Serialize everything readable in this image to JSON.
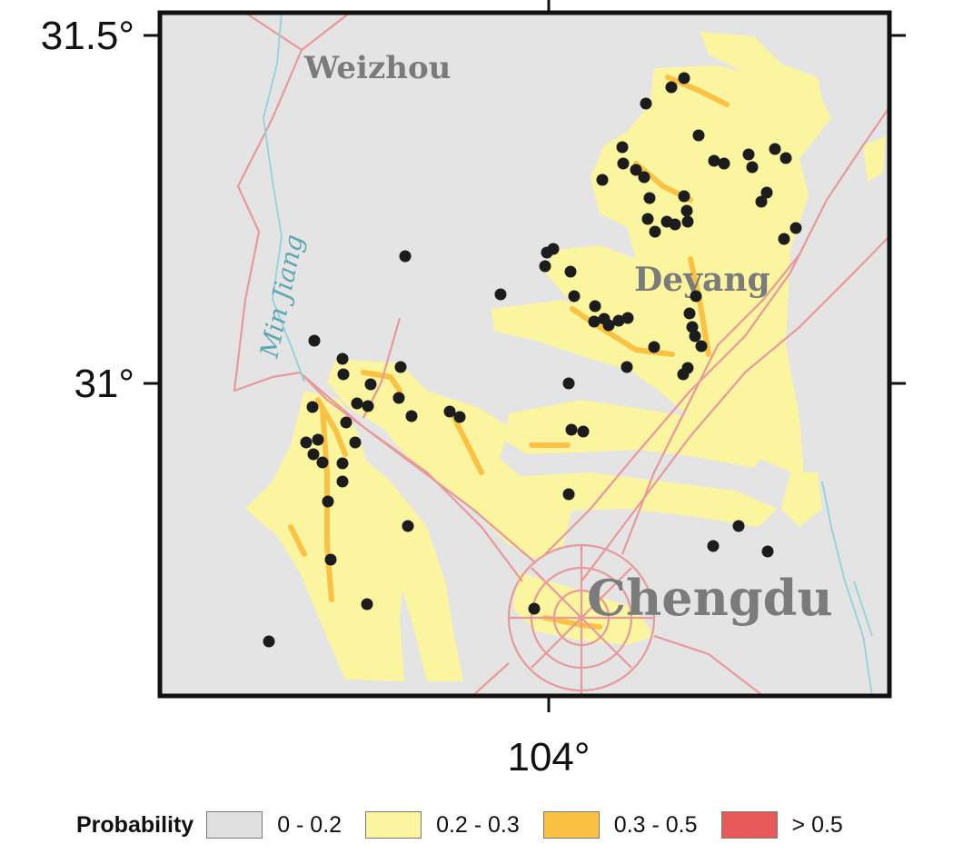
{
  "map": {
    "axes": {
      "y_ticks": [
        {
          "value": 31.5,
          "label": "31.5°"
        },
        {
          "value": 31.0,
          "label": "31°"
        }
      ],
      "x_ticks": [
        {
          "value": 104.0,
          "label": "104°"
        }
      ]
    },
    "cities": [
      {
        "name": "Weizhou"
      },
      {
        "name": "Deyang"
      },
      {
        "name": "Chengdu"
      }
    ],
    "river": {
      "name": "Min Jiang"
    },
    "colors": {
      "background": "#e4e4e4",
      "class_0_0.2": "#e4e4e4",
      "class_0.2_0.3": "#fbf59f",
      "class_0.3_0.5": "#fbc143",
      "class_gt_0.5": "#e85a5a",
      "roads": "#e7999b",
      "river": "#8fd3dc",
      "points": "#1c1c1c"
    }
  },
  "legend": {
    "title": "Probability",
    "items": [
      {
        "label": "0 - 0.2",
        "color": "#e0e0e0"
      },
      {
        "label": "0.2 - 0.3",
        "color": "#fbf59f"
      },
      {
        "label": "0.3 - 0.5",
        "color": "#fbc143"
      },
      {
        "label": "> 0.5",
        "color": "#e85a5a"
      }
    ]
  }
}
